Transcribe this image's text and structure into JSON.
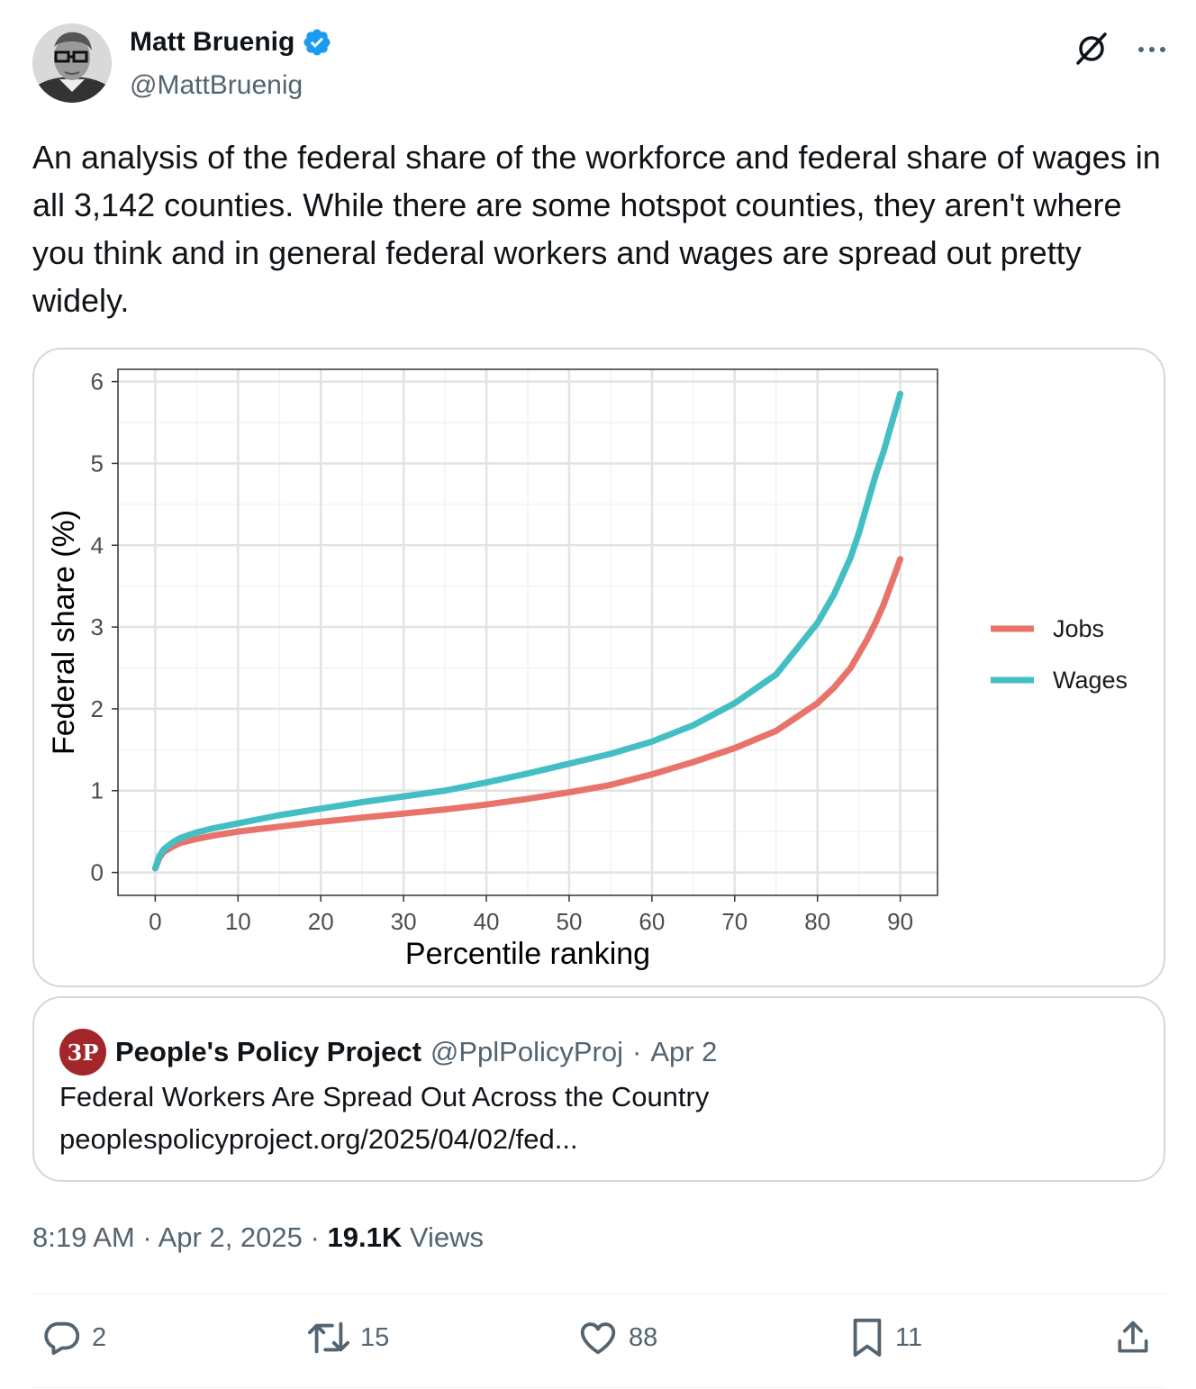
{
  "author": {
    "name": "Matt Bruenig",
    "handle": "@MattBruenig",
    "verified": true
  },
  "tweet": {
    "text": "An analysis of the federal share of the workforce and federal share of wages in all 3,142 counties. While there are some hotspot counties, they aren't where you think and in general federal workers and wages are spread out pretty widely."
  },
  "chart_data": {
    "type": "line",
    "xlabel": "Percentile ranking",
    "ylabel": "Federal share (%)",
    "xlim": [
      -4.5,
      94.5
    ],
    "ylim": [
      -0.28,
      6.15
    ],
    "xticks": [
      0,
      10,
      20,
      30,
      40,
      50,
      60,
      70,
      80,
      90
    ],
    "yticks": [
      0,
      1,
      2,
      3,
      4,
      5,
      6
    ],
    "grid": true,
    "legend_position": "right",
    "series": [
      {
        "name": "Jobs",
        "color": "#e8736a",
        "x": [
          0,
          0.5,
          1,
          2,
          3,
          5,
          7,
          10,
          15,
          20,
          25,
          30,
          35,
          40,
          45,
          50,
          55,
          60,
          65,
          70,
          75,
          80,
          82,
          84,
          86,
          87,
          88,
          89,
          90
        ],
        "y": [
          0.05,
          0.18,
          0.25,
          0.31,
          0.36,
          0.41,
          0.45,
          0.5,
          0.56,
          0.62,
          0.67,
          0.72,
          0.77,
          0.83,
          0.9,
          0.98,
          1.07,
          1.2,
          1.35,
          1.52,
          1.73,
          2.07,
          2.26,
          2.5,
          2.85,
          3.05,
          3.28,
          3.55,
          3.83
        ]
      },
      {
        "name": "Wages",
        "color": "#43bfc4",
        "x": [
          0,
          0.5,
          1,
          2,
          3,
          5,
          7,
          10,
          15,
          20,
          25,
          30,
          35,
          40,
          45,
          50,
          55,
          60,
          65,
          70,
          75,
          80,
          82,
          84,
          85,
          86,
          87,
          88,
          89,
          90
        ],
        "y": [
          0.05,
          0.2,
          0.28,
          0.36,
          0.42,
          0.49,
          0.54,
          0.6,
          0.7,
          0.78,
          0.86,
          0.93,
          1.0,
          1.1,
          1.21,
          1.33,
          1.45,
          1.6,
          1.8,
          2.07,
          2.42,
          3.05,
          3.4,
          3.85,
          4.15,
          4.5,
          4.85,
          5.15,
          5.5,
          5.85
        ]
      }
    ]
  },
  "quote": {
    "avatar_text": "3P",
    "name": "People's Policy Project",
    "handle": "@PplPolicyProj",
    "separator": "·",
    "date": "Apr 2",
    "title": "Federal Workers Are Spread Out Across the Country",
    "link": "peoplespolicyproject.org/2025/04/02/fed..."
  },
  "meta": {
    "time": "8:19 AM",
    "sep1": "·",
    "date": "Apr 2, 2025",
    "sep2": "·",
    "views_count": "19.1K",
    "views_label": "Views"
  },
  "actions": {
    "replies": "2",
    "reposts": "15",
    "likes": "88",
    "bookmarks": "11"
  },
  "colors": {
    "verified": "#1d9bf0",
    "secondary_text": "#536471",
    "border": "#cfd9de"
  }
}
